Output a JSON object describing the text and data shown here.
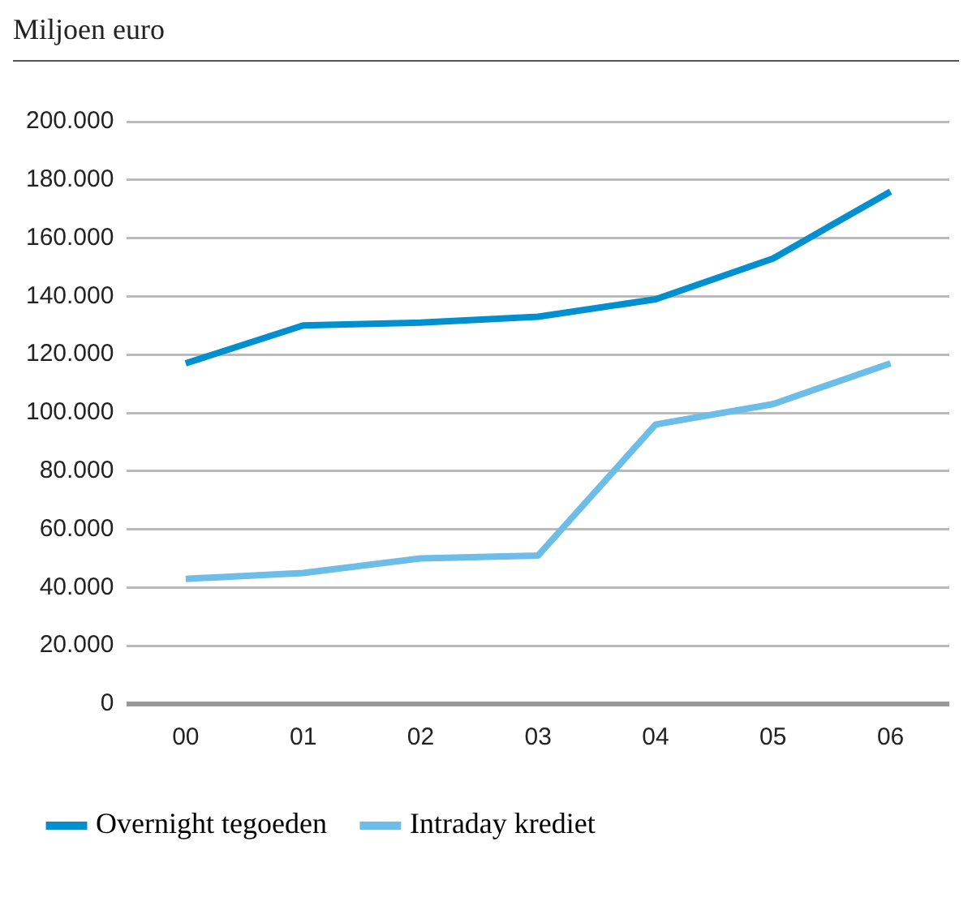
{
  "chart_data": {
    "type": "line",
    "title": "Miljoen euro",
    "categories": [
      "00",
      "01",
      "02",
      "03",
      "04",
      "05",
      "06"
    ],
    "series": [
      {
        "name": "Overnight tegoeden",
        "color": "#0090cf",
        "values": [
          117000,
          130000,
          131000,
          133000,
          139000,
          153000,
          176000
        ]
      },
      {
        "name": "Intraday krediet",
        "color": "#6cbde8",
        "values": [
          43000,
          45000,
          50000,
          51000,
          96000,
          103000,
          117000
        ]
      }
    ],
    "ylim": [
      0,
      200000
    ],
    "yticks": [
      {
        "value": 0,
        "label": "0"
      },
      {
        "value": 20000,
        "label": "20.000"
      },
      {
        "value": 40000,
        "label": "40.000"
      },
      {
        "value": 60000,
        "label": "60.000"
      },
      {
        "value": 80000,
        "label": "80.000"
      },
      {
        "value": 100000,
        "label": "100.000"
      },
      {
        "value": 120000,
        "label": "120.000"
      },
      {
        "value": 140000,
        "label": "140.000"
      },
      {
        "value": 160000,
        "label": "160.000"
      },
      {
        "value": 180000,
        "label": "180.000"
      },
      {
        "value": 200000,
        "label": "200.000"
      }
    ],
    "grid": "y",
    "legend": "bottom",
    "marker": "none",
    "line_style": "solid"
  }
}
